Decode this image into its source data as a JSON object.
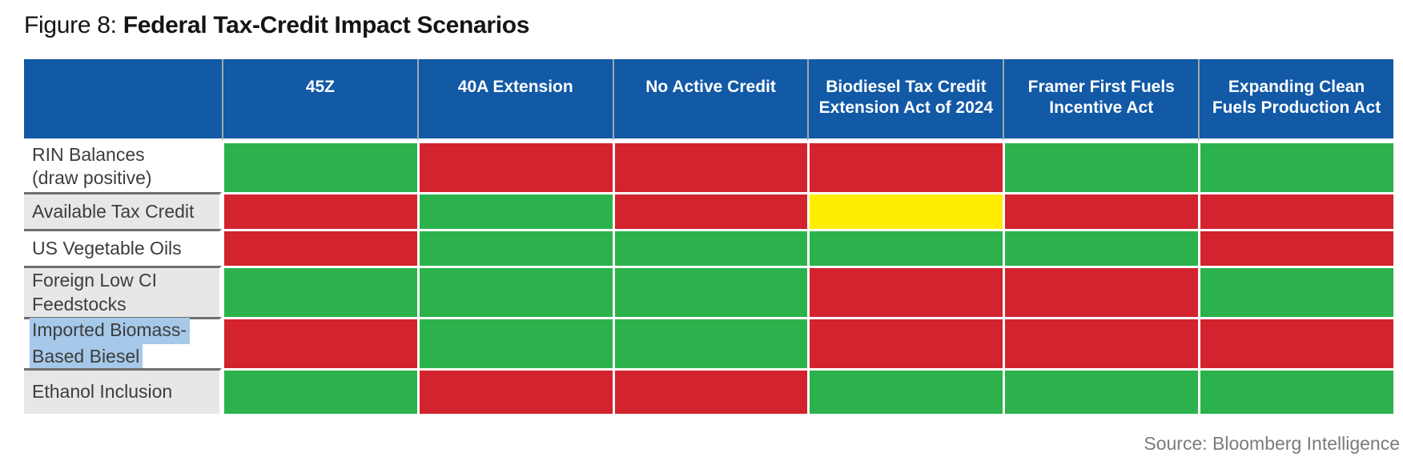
{
  "title": {
    "prefix": "Figure 8: ",
    "emphasis": "Federal Tax-Credit Impact Scenarios"
  },
  "source": "Source: Bloomberg Intelligence",
  "colors": {
    "header_bg": "#1259a6",
    "header_text": "#ffffff",
    "label_text": "#3d3d3d",
    "row_bg": "#ffffff",
    "row_alt_bg": "#e7e7e7",
    "row_separator": "#6f6f6f",
    "selection_highlight": "#a6c9e9",
    "source_text": "#7b7b7b",
    "positive_green": "#2bb24c",
    "negative_red": "#d2232e",
    "neutral_yellow": "#ffee00"
  },
  "chart_data": {
    "type": "heatmap",
    "title": "Figure 8: Federal Tax-Credit Impact Scenarios",
    "columns": [
      "45Z",
      "40A Extension",
      "No Active Credit",
      "Biodiesel Tax Credit Extension Act of 2024",
      "Framer First Fuels Incentive Act",
      "Expanding Clean Fuels Production Act"
    ],
    "rows": [
      {
        "label": "RIN Balances (draw positive)",
        "label_lines": [
          "RIN Balances",
          "(draw positive)"
        ],
        "selected": false,
        "values": [
          "green",
          "red",
          "red",
          "red",
          "green",
          "green"
        ]
      },
      {
        "label": "Available Tax Credit",
        "label_lines": [
          "Available Tax Credit"
        ],
        "selected": false,
        "values": [
          "red",
          "green",
          "red",
          "yellow",
          "red",
          "red"
        ]
      },
      {
        "label": "US Vegetable Oils",
        "label_lines": [
          "US Vegetable Oils"
        ],
        "selected": false,
        "values": [
          "red",
          "green",
          "green",
          "green",
          "green",
          "red"
        ]
      },
      {
        "label": "Foreign Low CI Feedstocks",
        "label_lines": [
          "Foreign Low CI",
          "Feedstocks"
        ],
        "selected": false,
        "values": [
          "green",
          "green",
          "green",
          "red",
          "red",
          "green"
        ]
      },
      {
        "label": "Imported Biomass-Based Biesel",
        "label_lines": [
          "Imported Biomass-",
          "Based Biesel"
        ],
        "selected": true,
        "values": [
          "red",
          "green",
          "green",
          "red",
          "red",
          "red"
        ]
      },
      {
        "label": "Ethanol Inclusion",
        "label_lines": [
          "Ethanol Inclusion"
        ],
        "selected": false,
        "values": [
          "green",
          "red",
          "red",
          "green",
          "green",
          "green"
        ]
      }
    ],
    "cell_color_values": {
      "green": "#2bb24c",
      "red": "#d2232e",
      "yellow": "#ffee00"
    },
    "legend_position": "none",
    "grid": "white 3px gaps between cells"
  }
}
